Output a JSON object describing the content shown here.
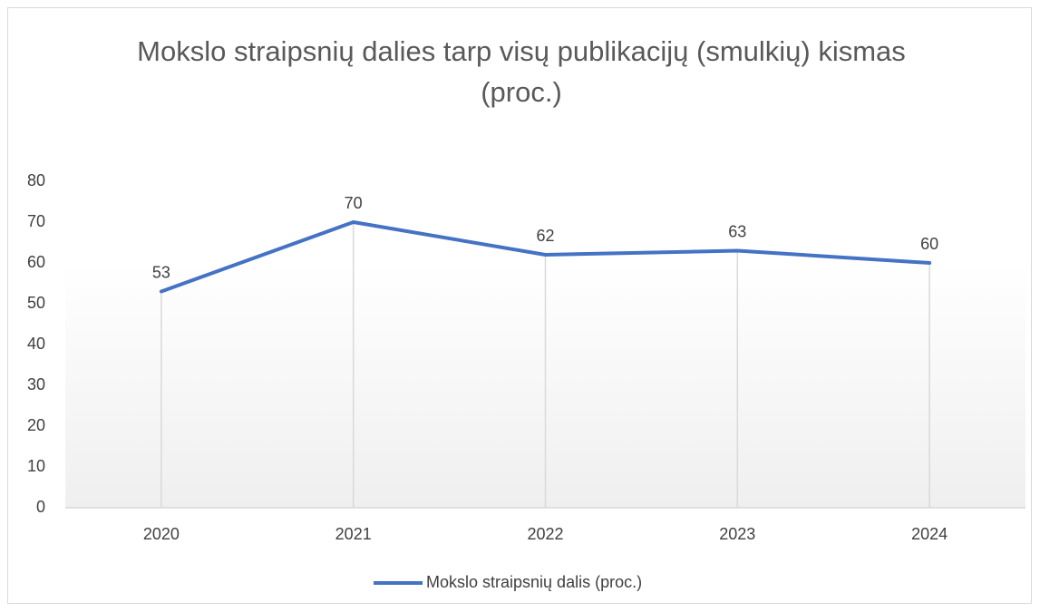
{
  "chart_data": {
    "type": "line",
    "title": "Mokslo straipsnių dalies tarp visų publikacijų (smulkių) kismas (proc.)",
    "categories": [
      "2020",
      "2021",
      "2022",
      "2023",
      "2024"
    ],
    "series": [
      {
        "name": "Mokslo straipsnių dalis (proc.)",
        "color": "#4472c4",
        "values": [
          53,
          70,
          62,
          63,
          60
        ]
      }
    ],
    "ylim": [
      0,
      80
    ],
    "yticks": [
      0,
      10,
      20,
      30,
      40,
      50,
      60,
      70,
      80
    ],
    "drop_lines": true,
    "data_labels": true,
    "legend": "bottom"
  }
}
